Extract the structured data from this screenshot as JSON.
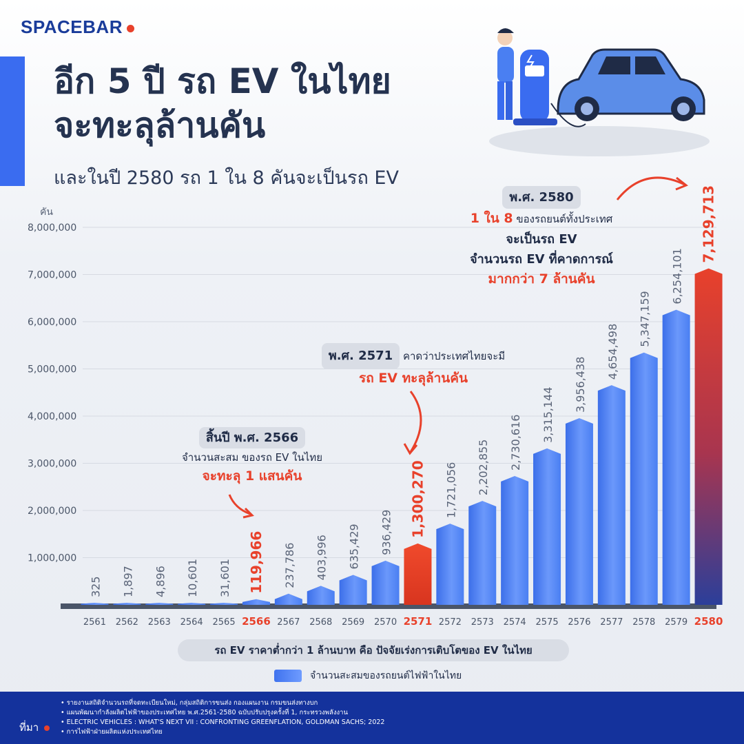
{
  "brand": "SPACEBAR",
  "title_line1": "อีก 5 ปี รถ EV ในไทย",
  "title_line2": "จะทะลุล้านคัน",
  "subtitle": "และในปี 2580 รถ 1 ใน 8 คันจะเป็นรถ EV",
  "callouts": {
    "c2566_pill": "สิ้นปี พ.ศ. 2566",
    "c2566_line1": "จำนวนสะสม ของรถ EV ในไทย",
    "c2566_line2": "จะทะลุ 1 แสนคัน",
    "c2571_pill": "พ.ศ. 2571",
    "c2571_line1": "คาดว่าประเทศไทยจะมี",
    "c2571_line2": "รถ EV ทะลุล้านคัน",
    "c2580_pill": "พ.ศ. 2580",
    "c2580_red": "1 ใน 8",
    "c2580_line1": "ของรถยนต์ทั้งประเทศ",
    "c2580_line2": "จะเป็นรถ EV",
    "c2580_line3": "จำนวนรถ EV ที่คาดการณ์",
    "c2580_line4": "มากกว่า 7 ล้านคัน"
  },
  "note": "รถ EV ราคาต่ำกว่า 1 ล้านบาท คือ ปัจจัยเร่งการเติบโตของ EV ในไทย",
  "legend_label": "จำนวนสะสมของรถยนต์ไฟฟ้าในไทย",
  "source_label": "ที่มา",
  "sources": [
    "รายงานสถิติจำนวนรถที่จดทะเบียนใหม่, กลุ่มสถิติการขนส่ง กองแผนงาน กรมขนส่งทางบก",
    "แผนพัฒนากำลังผลิตไฟฟ้าของประเทศไทย พ.ศ.2561-2580 ฉบับปรับปรุงครั้งที่ 1, กระทรวงพลังงาน",
    "ELECTRIC VEHICLES : WHAT'S NEXT VII : CONFRONTING GREENFLATION, GOLDMAN SACHS; 2022",
    "การไฟฟ้าฝ่ายผลิตแห่งประเทศไทย"
  ],
  "colors": {
    "bar": "#4a7ff2",
    "highlight": "#e8412b",
    "final_dark": "#2b3f9a",
    "accent": "#3a6cf0",
    "footer": "#14329c"
  },
  "chart_data": {
    "type": "bar",
    "ylabel": "คัน",
    "ylim": [
      0,
      8000000
    ],
    "yticks": [
      1000000,
      2000000,
      3000000,
      4000000,
      5000000,
      6000000,
      7000000,
      8000000
    ],
    "ytick_labels": [
      "1,000,000",
      "2,000,000",
      "3,000,000",
      "4,000,000",
      "5,000,000",
      "6,000,000",
      "7,000,000",
      "8,000,000"
    ],
    "categories": [
      "2561",
      "2562",
      "2563",
      "2564",
      "2565",
      "2566",
      "2567",
      "2568",
      "2569",
      "2570",
      "2571",
      "2572",
      "2573",
      "2574",
      "2575",
      "2576",
      "2577",
      "2578",
      "2579",
      "2580"
    ],
    "values": [
      325,
      1897,
      4896,
      10601,
      31601,
      119966,
      237786,
      403996,
      635429,
      936429,
      1300270,
      1721056,
      2202855,
      2730616,
      3315144,
      3956438,
      4654498,
      5347159,
      6254101,
      7129713
    ],
    "value_labels": [
      "325",
      "1,897",
      "4,896",
      "10,601",
      "31,601",
      "119,966",
      "237,786",
      "403,996",
      "635,429",
      "936,429",
      "1,300,270",
      "1,721,056",
      "2,202,855",
      "2,730,616",
      "3,315,144",
      "3,956,438",
      "4,654,498",
      "5,347,159",
      "6,254,101",
      "7,129,713"
    ],
    "highlighted": [
      "2566",
      "2571",
      "2580"
    ],
    "grid": true,
    "legend": "bottom"
  }
}
